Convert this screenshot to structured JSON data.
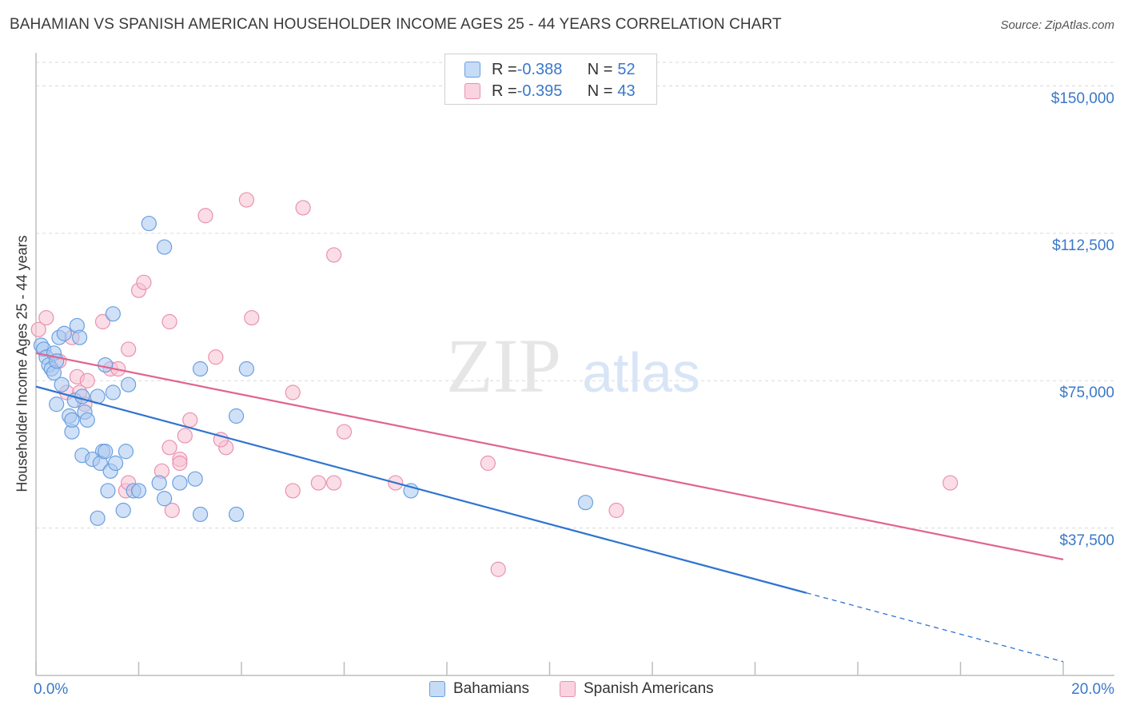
{
  "header": {
    "title": "BAHAMIAN VS SPANISH AMERICAN HOUSEHOLDER INCOME AGES 25 - 44 YEARS CORRELATION CHART",
    "source": "Source: ZipAtlas.com"
  },
  "watermark": {
    "zip": "ZIP",
    "atlas": "atlas"
  },
  "legend_top": {
    "rows": [
      {
        "r_label": "R = ",
        "r_value": "-0.388",
        "n_label": "N = ",
        "n_value": "52"
      },
      {
        "r_label": "R = ",
        "r_value": "-0.395",
        "n_label": "N = ",
        "n_value": "43"
      }
    ]
  },
  "colors": {
    "blue_fill": "#a9c8f0",
    "blue_stroke": "#6a9fe0",
    "blue_line": "#2f74d0",
    "pink_fill": "#f7c1d2",
    "pink_stroke": "#e892b0",
    "pink_line": "#e0648e",
    "tick_text": "#3a78c8",
    "grid": "#d9d9d9"
  },
  "chart_data": {
    "type": "scatter",
    "title": "BAHAMIAN VS SPANISH AMERICAN HOUSEHOLDER INCOME AGES 25 - 44 YEARS CORRELATION CHART",
    "xlabel": "",
    "ylabel": "Householder Income Ages 25 - 44 years",
    "xlim": [
      0,
      20
    ],
    "ylim": [
      0,
      156000
    ],
    "x_tick_labels": [
      "0.0%",
      "20.0%"
    ],
    "y_ticks": [
      37500,
      75000,
      112500,
      150000
    ],
    "y_tick_labels": [
      "$37,500",
      "$75,000",
      "$112,500",
      "$150,000"
    ],
    "series": [
      {
        "name": "Bahamians",
        "color": "#6a9fe0",
        "points": [
          [
            0.1,
            84000
          ],
          [
            0.15,
            83000
          ],
          [
            0.2,
            81000
          ],
          [
            0.25,
            79000
          ],
          [
            0.35,
            82000
          ],
          [
            0.3,
            78000
          ],
          [
            0.45,
            86000
          ],
          [
            0.55,
            87000
          ],
          [
            0.8,
            89000
          ],
          [
            0.35,
            77000
          ],
          [
            0.5,
            74000
          ],
          [
            0.85,
            86000
          ],
          [
            0.4,
            69000
          ],
          [
            0.65,
            66000
          ],
          [
            0.95,
            67000
          ],
          [
            0.75,
            70000
          ],
          [
            1.2,
            71000
          ],
          [
            1.5,
            72000
          ],
          [
            1.8,
            74000
          ],
          [
            1.3,
            57000
          ],
          [
            0.7,
            62000
          ],
          [
            1.0,
            65000
          ],
          [
            0.9,
            56000
          ],
          [
            1.1,
            55000
          ],
          [
            1.25,
            54000
          ],
          [
            1.45,
            52000
          ],
          [
            1.55,
            54000
          ],
          [
            1.75,
            57000
          ],
          [
            1.9,
            47000
          ],
          [
            1.4,
            47000
          ],
          [
            1.35,
            57000
          ],
          [
            1.7,
            42000
          ],
          [
            1.2,
            40000
          ],
          [
            2.0,
            47000
          ],
          [
            2.4,
            49000
          ],
          [
            2.5,
            45000
          ],
          [
            2.8,
            49000
          ],
          [
            3.1,
            50000
          ],
          [
            3.2,
            41000
          ],
          [
            3.9,
            41000
          ],
          [
            2.2,
            115000
          ],
          [
            2.5,
            109000
          ],
          [
            1.5,
            92000
          ],
          [
            3.2,
            78000
          ],
          [
            4.1,
            78000
          ],
          [
            3.9,
            66000
          ],
          [
            7.3,
            47000
          ],
          [
            10.7,
            44000
          ],
          [
            0.9,
            71000
          ],
          [
            1.35,
            79000
          ],
          [
            0.7,
            65000
          ],
          [
            0.4,
            80000
          ]
        ]
      },
      {
        "name": "Spanish Americans",
        "color": "#e892b0",
        "points": [
          [
            0.05,
            88000
          ],
          [
            0.2,
            91000
          ],
          [
            0.45,
            80000
          ],
          [
            0.7,
            86000
          ],
          [
            0.6,
            72000
          ],
          [
            0.8,
            76000
          ],
          [
            1.0,
            75000
          ],
          [
            0.85,
            72000
          ],
          [
            0.95,
            69000
          ],
          [
            1.3,
            90000
          ],
          [
            1.45,
            78000
          ],
          [
            1.6,
            78000
          ],
          [
            1.8,
            83000
          ],
          [
            2.0,
            98000
          ],
          [
            2.1,
            100000
          ],
          [
            2.6,
            90000
          ],
          [
            2.6,
            58000
          ],
          [
            2.8,
            55000
          ],
          [
            2.9,
            61000
          ],
          [
            3.0,
            65000
          ],
          [
            3.7,
            58000
          ],
          [
            3.5,
            81000
          ],
          [
            4.2,
            91000
          ],
          [
            5.0,
            72000
          ],
          [
            3.3,
            117000
          ],
          [
            4.1,
            121000
          ],
          [
            5.2,
            119000
          ],
          [
            5.8,
            107000
          ],
          [
            6.0,
            62000
          ],
          [
            5.0,
            47000
          ],
          [
            5.5,
            49000
          ],
          [
            5.8,
            49000
          ],
          [
            7.0,
            49000
          ],
          [
            8.8,
            54000
          ],
          [
            9.0,
            27000
          ],
          [
            11.3,
            42000
          ],
          [
            17.8,
            49000
          ],
          [
            1.75,
            47000
          ],
          [
            1.8,
            49000
          ],
          [
            2.8,
            54000
          ],
          [
            3.6,
            60000
          ],
          [
            2.45,
            52000
          ],
          [
            2.65,
            42000
          ]
        ]
      }
    ],
    "trendlines": [
      {
        "name": "Bahamians",
        "x_start": 0,
        "y_start": 73500,
        "x_solid_end": 15.0,
        "y_solid_end": 21000,
        "x_end": 20,
        "y_end": 3500
      },
      {
        "name": "Spanish Americans",
        "x_start": 0,
        "y_start": 82000,
        "x_end": 20,
        "y_end": 29500
      }
    ]
  },
  "legend_bottom": {
    "items": [
      {
        "label": "Bahamians"
      },
      {
        "label": "Spanish Americans"
      }
    ]
  }
}
